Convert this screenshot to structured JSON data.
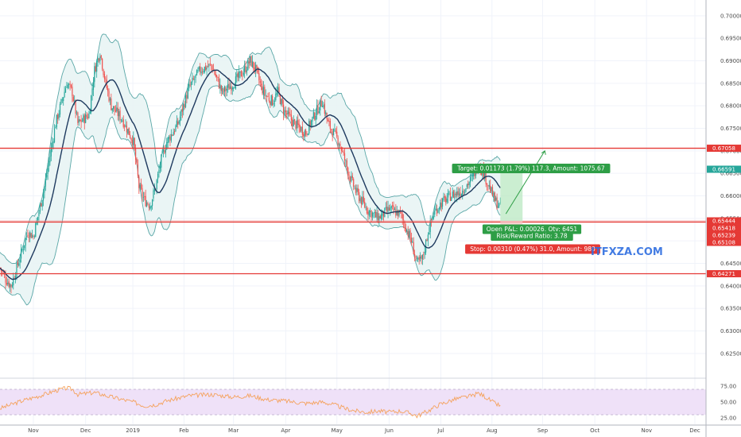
{
  "chart_data": [
    {
      "type": "candlestick",
      "price_axis": {
        "ticks": [
          "0.70000",
          "0.69500",
          "0.69000",
          "0.68500",
          "0.68000",
          "0.67500",
          "0.67000",
          "0.66500",
          "0.66000",
          "0.65500",
          "0.65000",
          "0.64500",
          "0.64000",
          "0.63500",
          "0.63000",
          "0.62500"
        ],
        "range": [
          0.6195,
          0.7035
        ]
      },
      "time_axis": {
        "labels": [
          {
            "text": "Nov",
            "week": 6.0
          },
          {
            "text": "Dec",
            "week": 15.4
          },
          {
            "text": "2019",
            "week": 23.9
          },
          {
            "text": "Feb",
            "week": 33.1
          },
          {
            "text": "Mar",
            "week": 42.0
          },
          {
            "text": "Apr",
            "week": 51.4
          },
          {
            "text": "May",
            "week": 60.6
          },
          {
            "text": "Jun",
            "week": 70.0
          },
          {
            "text": "Jul",
            "week": 79.3
          },
          {
            "text": "Aug",
            "week": 88.5
          },
          {
            "text": "Sep",
            "week": 97.6
          },
          {
            "text": "Oct",
            "week": 107.0
          },
          {
            "text": "Nov",
            "week": 116.3
          },
          {
            "text": "Dec",
            "week": 125.0
          }
        ],
        "week_range": [
          0,
          127
        ]
      },
      "price_keypoints": [
        [
          0,
          0.644
        ],
        [
          1,
          0.6415
        ],
        [
          2,
          0.64
        ],
        [
          4,
          0.648
        ],
        [
          5,
          0.652
        ],
        [
          6,
          0.651
        ],
        [
          8,
          0.662
        ],
        [
          10,
          0.676
        ],
        [
          12,
          0.685
        ],
        [
          13,
          0.683
        ],
        [
          14,
          0.676
        ],
        [
          16,
          0.678
        ],
        [
          17,
          0.688
        ],
        [
          18,
          0.692
        ],
        [
          19,
          0.685
        ],
        [
          20,
          0.68
        ],
        [
          22,
          0.677
        ],
        [
          24,
          0.672
        ],
        [
          25,
          0.662
        ],
        [
          26,
          0.659
        ],
        [
          27,
          0.658
        ],
        [
          28,
          0.662
        ],
        [
          29,
          0.668
        ],
        [
          30,
          0.672
        ],
        [
          32,
          0.676
        ],
        [
          34,
          0.684
        ],
        [
          36,
          0.688
        ],
        [
          38,
          0.689
        ],
        [
          39,
          0.686
        ],
        [
          40,
          0.683
        ],
        [
          42,
          0.685
        ],
        [
          44,
          0.688
        ],
        [
          45,
          0.69
        ],
        [
          46,
          0.688
        ],
        [
          47,
          0.684
        ],
        [
          48,
          0.682
        ],
        [
          49,
          0.681
        ],
        [
          50,
          0.683
        ],
        [
          51,
          0.679
        ],
        [
          53,
          0.676
        ],
        [
          55,
          0.674
        ],
        [
          57,
          0.679
        ],
        [
          58,
          0.681
        ],
        [
          59,
          0.676
        ],
        [
          60,
          0.674
        ],
        [
          61,
          0.672
        ],
        [
          62,
          0.668
        ],
        [
          63,
          0.664
        ],
        [
          64,
          0.661
        ],
        [
          65,
          0.659
        ],
        [
          66,
          0.657
        ],
        [
          67,
          0.656
        ],
        [
          68,
          0.655
        ],
        [
          69,
          0.656
        ],
        [
          70,
          0.657
        ],
        [
          72,
          0.656
        ],
        [
          73,
          0.653
        ],
        [
          74,
          0.65
        ],
        [
          75,
          0.645
        ],
        [
          76,
          0.646
        ],
        [
          77,
          0.652
        ],
        [
          78,
          0.656
        ],
        [
          79,
          0.658
        ],
        [
          81,
          0.66
        ],
        [
          83,
          0.661
        ],
        [
          85,
          0.664
        ],
        [
          86,
          0.667
        ],
        [
          87,
          0.665
        ],
        [
          88,
          0.662
        ],
        [
          89,
          0.659
        ],
        [
          90,
          0.6575
        ]
      ],
      "rsi": {
        "ticks": [
          "75.00",
          "50.00",
          "25.00"
        ],
        "upper": 70,
        "lower": 30,
        "keypoints": [
          [
            0,
            40
          ],
          [
            4,
            52
          ],
          [
            8,
            62
          ],
          [
            10,
            68
          ],
          [
            12,
            72
          ],
          [
            13,
            70
          ],
          [
            14,
            62
          ],
          [
            17,
            65
          ],
          [
            20,
            58
          ],
          [
            24,
            50
          ],
          [
            26,
            44
          ],
          [
            28,
            46
          ],
          [
            30,
            52
          ],
          [
            34,
            60
          ],
          [
            38,
            62
          ],
          [
            42,
            58
          ],
          [
            45,
            60
          ],
          [
            48,
            54
          ],
          [
            51,
            52
          ],
          [
            55,
            48
          ],
          [
            58,
            50
          ],
          [
            60,
            46
          ],
          [
            62,
            40
          ],
          [
            64,
            36
          ],
          [
            66,
            34
          ],
          [
            68,
            36
          ],
          [
            70,
            34
          ],
          [
            72,
            36
          ],
          [
            74,
            32
          ],
          [
            75,
            28
          ],
          [
            77,
            36
          ],
          [
            79,
            46
          ],
          [
            82,
            55
          ],
          [
            85,
            60
          ],
          [
            86,
            64
          ],
          [
            87,
            60
          ],
          [
            88,
            54
          ],
          [
            89,
            48
          ],
          [
            90,
            44
          ]
        ]
      },
      "horizontal_levels": [
        0.67058,
        0.65418,
        0.64271
      ],
      "price_tags": [
        {
          "text": "0.67058",
          "value": 0.67058,
          "color": "#e53935"
        },
        {
          "text": "0.66591",
          "value": 0.66591,
          "color": "#26a69a"
        },
        {
          "text": "0.65444",
          "value": 0.65444,
          "color": "#e53935"
        },
        {
          "text": "0.65418",
          "value": 0.65418,
          "color": "#e53935"
        },
        {
          "text": "0.65239",
          "value": 0.65239,
          "color": "#e53935"
        },
        {
          "text": "0.65108",
          "value": 0.65108,
          "color": "#e53935"
        },
        {
          "text": "0.64271",
          "value": 0.64271,
          "color": "#e53935"
        }
      ],
      "position": {
        "entry": 0.65444,
        "target_price": 0.66617,
        "stop_price": 0.65134,
        "start_week": 90,
        "end_week": 94,
        "target_label": "Target: 0.01173 (1.79%) 117.3, Amount: 1075.67",
        "open_label": "Open P&L: 0.00026, Qty: 6451",
        "rr_label": "Risk/Reward Ratio: 3.78",
        "stop_label": "Stop: 0.00310 (0.47%) 31.0, Amount: 980"
      },
      "projection": {
        "from": [
          91,
          0.656
        ],
        "to": [
          98,
          0.67
        ]
      },
      "watermark": "ITFXZA.COM",
      "colors": {
        "up": "#26a69a",
        "down": "#ef5350",
        "level": "#e53935",
        "band": "#5aa7a7",
        "band_fill": "#e8f4f4",
        "ma": "#1e3a5f",
        "rsi_line": "#f5a25d",
        "rsi_fill": "#efe1f8"
      }
    }
  ]
}
